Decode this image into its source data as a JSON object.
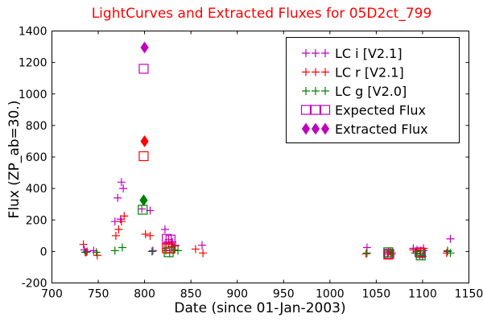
{
  "chart_data": {
    "type": "scatter",
    "title": "LightCurves and Extracted Fluxes for 05D2ct_799",
    "xlabel": "Date (since 01-Jan-2003)",
    "ylabel": "Flux (ZP_ab=30.)",
    "xlim": [
      700,
      1150
    ],
    "ylim": [
      -200,
      1400
    ],
    "xticks": [
      "700",
      "750",
      "800",
      "850",
      "900",
      "950",
      "1000",
      "1050",
      "1100",
      "1150"
    ],
    "yticks": [
      "-200",
      "0",
      "200",
      "400",
      "600",
      "800",
      "1000",
      "1200",
      "1400"
    ],
    "grid": false,
    "legend_position": "top-right",
    "series": [
      {
        "name": "LC i [V2.1]",
        "color": "#bf00bf",
        "marker": "plus",
        "points": [
          [
            735,
            10
          ],
          [
            738,
            0
          ],
          [
            745,
            5
          ],
          [
            768,
            190
          ],
          [
            771,
            340
          ],
          [
            774,
            205
          ],
          [
            775,
            440
          ],
          [
            777,
            400
          ],
          [
            797,
            270
          ],
          [
            806,
            260
          ],
          [
            809,
            5
          ],
          [
            822,
            140
          ],
          [
            826,
            75
          ],
          [
            830,
            60
          ],
          [
            833,
            40
          ],
          [
            862,
            40
          ],
          [
            1040,
            25
          ],
          [
            1063,
            -5
          ],
          [
            1067,
            -10
          ],
          [
            1090,
            20
          ],
          [
            1094,
            10
          ],
          [
            1098,
            -15
          ],
          [
            1101,
            5
          ],
          [
            1127,
            0
          ],
          [
            1130,
            80
          ]
        ]
      },
      {
        "name": "LC r [V2.1]",
        "color": "#ff0000",
        "marker": "plus",
        "points": [
          [
            734,
            45
          ],
          [
            737,
            -5
          ],
          [
            749,
            -25
          ],
          [
            769,
            100
          ],
          [
            772,
            140
          ],
          [
            775,
            190
          ],
          [
            778,
            225
          ],
          [
            801,
            110
          ],
          [
            806,
            100
          ],
          [
            823,
            20
          ],
          [
            826,
            55
          ],
          [
            829,
            30
          ],
          [
            833,
            35
          ],
          [
            855,
            15
          ],
          [
            863,
            -10
          ],
          [
            1039,
            -15
          ],
          [
            1062,
            -15
          ],
          [
            1066,
            -20
          ],
          [
            1090,
            10
          ],
          [
            1094,
            0
          ],
          [
            1098,
            5
          ],
          [
            1101,
            20
          ],
          [
            1126,
            -10
          ]
        ]
      },
      {
        "name": "LC g [V2.0]",
        "color": "#008000",
        "marker": "plus",
        "points": [
          [
            736,
            -5
          ],
          [
            748,
            -5
          ],
          [
            768,
            5
          ],
          [
            776,
            25
          ],
          [
            808,
            0
          ],
          [
            823,
            5
          ],
          [
            827,
            -10
          ],
          [
            832,
            10
          ],
          [
            836,
            5
          ],
          [
            1040,
            -10
          ],
          [
            1065,
            0
          ],
          [
            1092,
            -10
          ],
          [
            1097,
            -25
          ],
          [
            1100,
            -30
          ],
          [
            1127,
            5
          ],
          [
            1130,
            -10
          ]
        ]
      },
      {
        "name": "Expected Flux",
        "color": "#bf00bf",
        "marker": "open-square",
        "points": [
          [
            799,
            1160
          ],
          [
            824,
            80
          ],
          [
            828,
            75
          ],
          [
            826,
            35
          ],
          [
            1064,
            -15
          ],
          [
            1097,
            -5
          ]
        ]
      },
      {
        "name": "Expected Flux (r)",
        "color": "#ff0000",
        "marker": "open-square",
        "points": [
          [
            799,
            605
          ],
          [
            824,
            20
          ],
          [
            828,
            20
          ],
          [
            1063,
            -20
          ],
          [
            1098,
            -10
          ]
        ]
      },
      {
        "name": "Expected Flux (g)",
        "color": "#008000",
        "marker": "open-square",
        "points": [
          [
            798,
            265
          ],
          [
            826,
            -5
          ],
          [
            1063,
            -5
          ],
          [
            1098,
            -25
          ]
        ]
      },
      {
        "name": "Extracted Flux",
        "color": "#bf00bf",
        "marker": "diamond",
        "points": [
          [
            800,
            1295
          ]
        ]
      },
      {
        "name": "Extracted Flux (r)",
        "color": "#ff0000",
        "marker": "diamond",
        "points": [
          [
            800,
            700
          ]
        ]
      },
      {
        "name": "Extracted Flux (g)",
        "color": "#008000",
        "marker": "diamond",
        "points": [
          [
            799,
            325
          ]
        ]
      }
    ],
    "legend": [
      {
        "label": "LC i [V2.1]",
        "color": "#bf00bf",
        "marker": "plus"
      },
      {
        "label": "LC r [V2.1]",
        "color": "#ff0000",
        "marker": "plus"
      },
      {
        "label": "LC g [V2.0]",
        "color": "#008000",
        "marker": "plus"
      },
      {
        "label": "Expected Flux",
        "color": "#bf00bf",
        "marker": "open-square"
      },
      {
        "label": "Extracted Flux",
        "color": "#bf00bf",
        "marker": "diamond"
      }
    ]
  }
}
